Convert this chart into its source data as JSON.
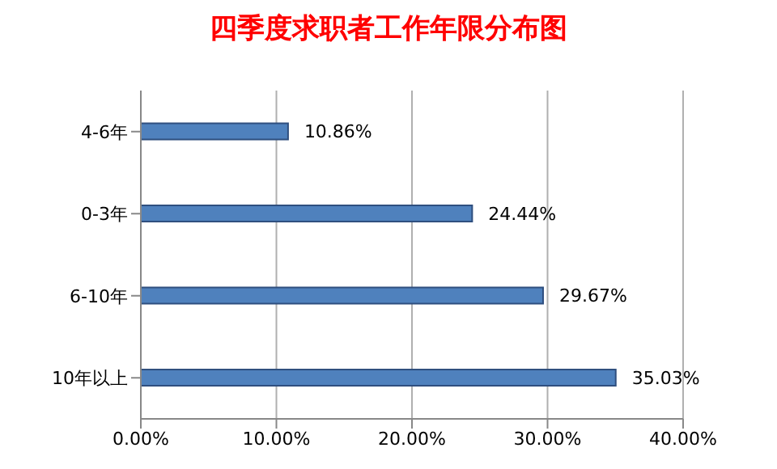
{
  "chart_data": {
    "type": "bar",
    "orientation": "horizontal",
    "title": "四季度求职者工作年限分布图",
    "categories": [
      "4-6年",
      "0-3年",
      "6-10年",
      "10年以上"
    ],
    "values": [
      10.86,
      24.44,
      29.67,
      35.03
    ],
    "value_labels": [
      "10.86%",
      "24.44%",
      "29.67%",
      "35.03%"
    ],
    "color": "#4f81bd",
    "xlim": [
      0,
      40
    ],
    "xticks": [
      {
        "value": 0,
        "label": "0.00%"
      },
      {
        "value": 10,
        "label": "10.00%"
      },
      {
        "value": 20,
        "label": "20.00%"
      },
      {
        "value": 30,
        "label": "30.00%"
      },
      {
        "value": 40,
        "label": "40.00%"
      }
    ],
    "grid": "x",
    "legend": false
  }
}
